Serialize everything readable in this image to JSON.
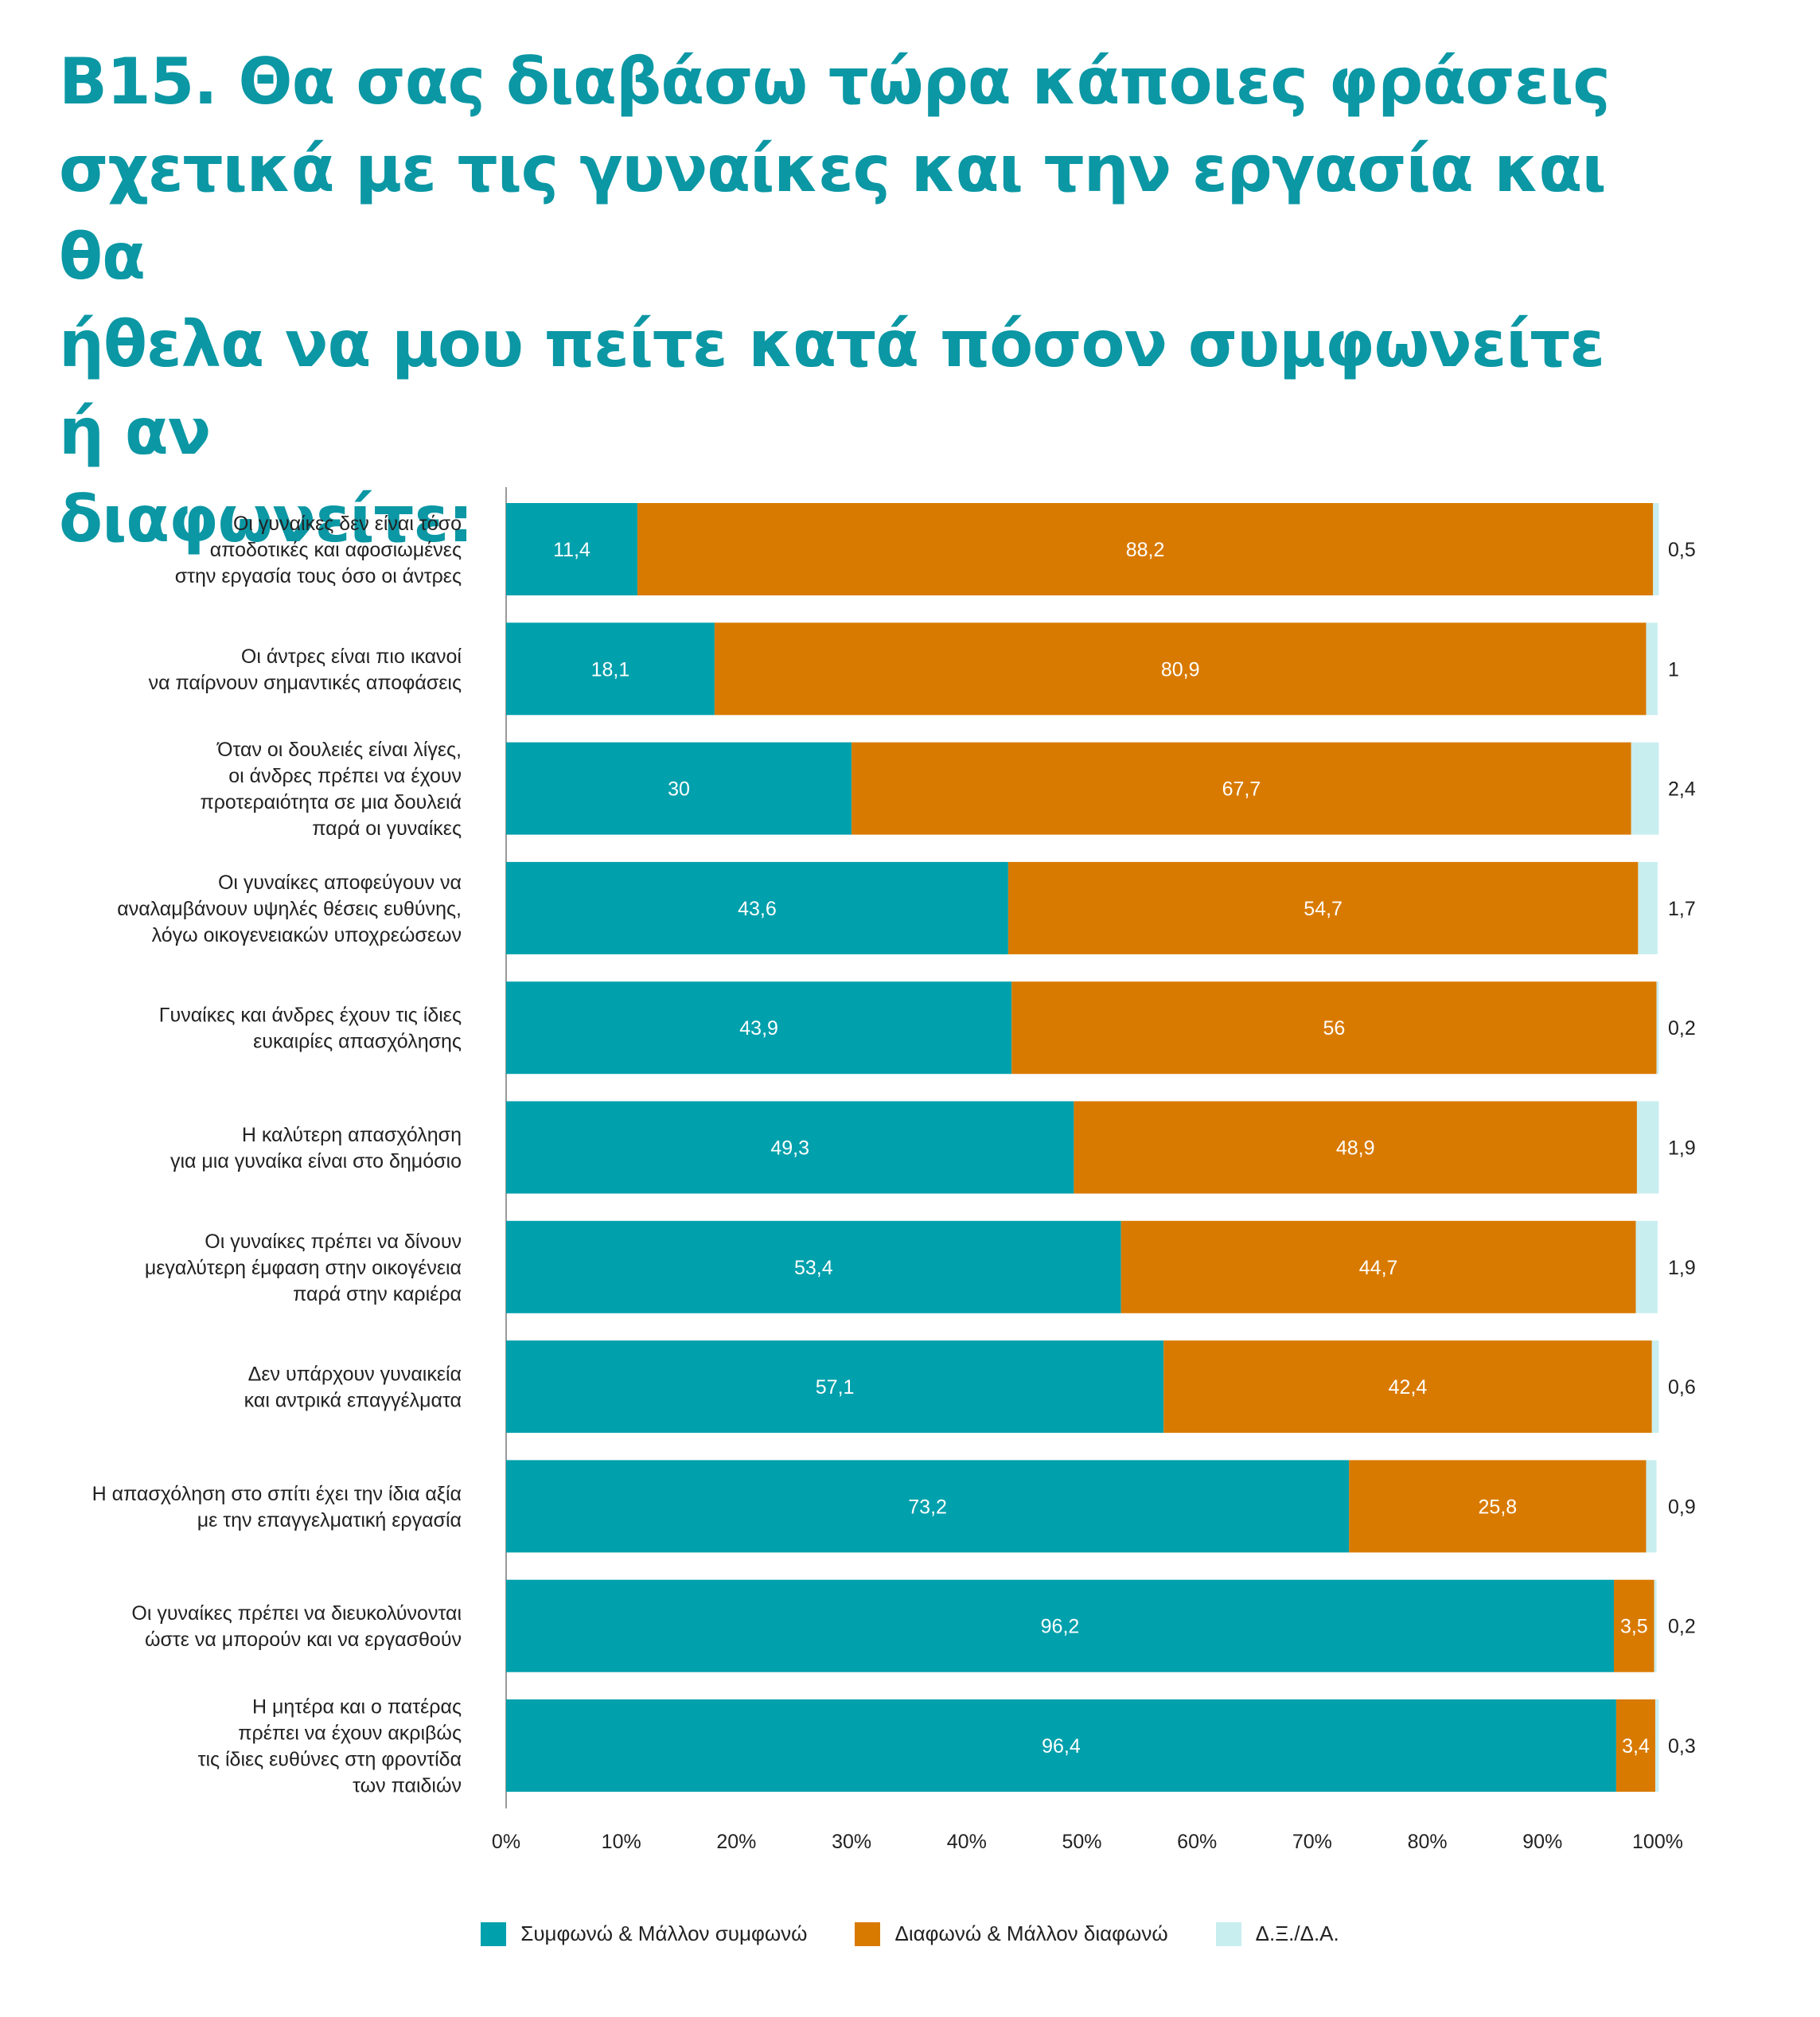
{
  "chart_data": {
    "type": "bar",
    "orientation": "horizontal",
    "stacked": true,
    "title": [
      "B15. Θα σας διαβάσω τώρα κάποιες φράσεις",
      "σχετικά με τις γυναίκες και την εργασία και θα",
      "ήθελα να μου πείτε κατά πόσον συμφωνείτε ή αν",
      "διαφωνείτε:"
    ],
    "categories": [
      [
        "Οι γυναίκες δεν είναι τόσο",
        "αποδοτικές και αφοσιωμένες",
        "στην εργασία τους όσο οι άντρες"
      ],
      [
        "Οι άντρες είναι πιο ικανοί",
        "να παίρνουν σημαντικές αποφάσεις"
      ],
      [
        "Όταν οι δουλειές είναι λίγες,",
        "οι άνδρες πρέπει να έχουν",
        "προτεραιότητα σε μια δουλειά",
        "παρά οι γυναίκες"
      ],
      [
        "Οι γυναίκες αποφεύγουν να",
        "αναλαμβάνουν υψηλές θέσεις ευθύνης,",
        "λόγω οικογενειακών υποχρεώσεων"
      ],
      [
        "Γυναίκες και άνδρες έχουν τις ίδιες",
        "ευκαιρίες απασχόλησης"
      ],
      [
        "Η καλύτερη απασχόληση",
        "για μια γυναίκα είναι στο δημόσιο"
      ],
      [
        "Οι γυναίκες πρέπει να δίνουν",
        "μεγαλύτερη έμφαση στην οικογένεια",
        "παρά στην καριέρα"
      ],
      [
        "Δεν υπάρχουν γυναικεία",
        "και αντρικά επαγγέλματα"
      ],
      [
        "Η απασχόληση στο σπίτι έχει την ίδια αξία",
        "με την επαγγελματική εργασία"
      ],
      [
        "Οι γυναίκες πρέπει να διευκολύνονται",
        "ώστε να μπορούν και να εργασθούν"
      ],
      [
        "Η μητέρα και ο πατέρας",
        "πρέπει να έχουν ακριβώς",
        "τις ίδιες ευθύνες στη φροντίδα",
        "των παιδιών"
      ]
    ],
    "series": [
      {
        "name": "Συμφωνώ & Μάλλον συμφωνώ",
        "color": "#00a0ac",
        "label_color": "#ffffff",
        "values": [
          11.4,
          18.1,
          30,
          43.6,
          43.9,
          49.3,
          53.4,
          57.1,
          73.2,
          96.2,
          96.4
        ],
        "labels": [
          "11,4",
          "18,1",
          "30",
          "43,6",
          "43,9",
          "49,3",
          "53,4",
          "57,1",
          "73,2",
          "96,2",
          "96,4"
        ]
      },
      {
        "name": "Διαφωνώ & Μάλλον διαφωνώ",
        "color": "#d97a00",
        "label_color": "#ffffff",
        "values": [
          88.2,
          80.9,
          67.7,
          54.7,
          56,
          48.9,
          44.7,
          42.4,
          25.8,
          3.5,
          3.4
        ],
        "labels": [
          "88,2",
          "80,9",
          "67,7",
          "54,7",
          "56",
          "48,9",
          "44,7",
          "42,4",
          "25,8",
          "3,5",
          "3,4"
        ]
      },
      {
        "name": "Δ.Ξ./Δ.Α.",
        "color": "#c9eef0",
        "label_color": "#222222",
        "label_outside": true,
        "values": [
          0.5,
          1,
          2.4,
          1.7,
          0.2,
          1.9,
          1.9,
          0.6,
          0.9,
          0.2,
          0.3
        ],
        "labels": [
          "0,5",
          "1",
          "2,4",
          "1,7",
          "0,2",
          "1,9",
          "1,9",
          "0,6",
          "0,9",
          "0,2",
          "0,3"
        ]
      }
    ],
    "xlim": [
      0,
      100
    ],
    "xticks": [
      0,
      10,
      20,
      30,
      40,
      50,
      60,
      70,
      80,
      90,
      100
    ],
    "xtick_labels": [
      "0%",
      "10%",
      "20%",
      "30%",
      "40%",
      "50%",
      "60%",
      "70%",
      "80%",
      "90%",
      "100%"
    ],
    "grid": false,
    "legend_position": "bottom"
  }
}
